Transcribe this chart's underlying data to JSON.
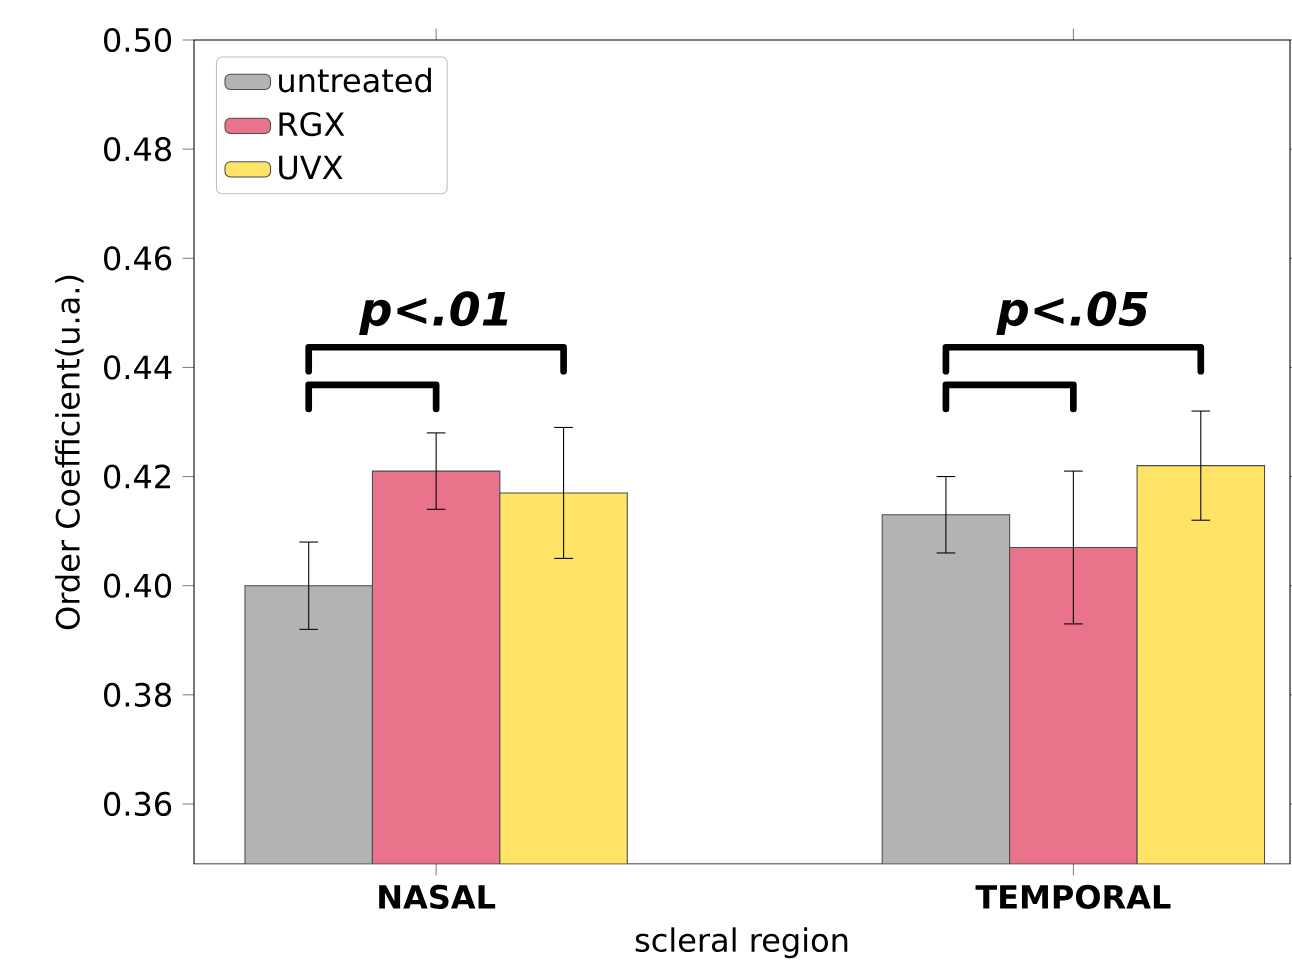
{
  "chart_data": {
    "type": "bar",
    "xlabel": "scleral region",
    "ylabel": "Order Coefficient(u.a.)",
    "categories": [
      "NASAL",
      "TEMPORAL"
    ],
    "series": [
      {
        "name": "untreated",
        "color": "#b3b3b3",
        "values": [
          0.4,
          0.413
        ],
        "errors": [
          0.008,
          0.007
        ]
      },
      {
        "name": "RGX",
        "color": "#e8738b",
        "values": [
          0.421,
          0.407
        ],
        "errors": [
          0.007,
          0.014
        ]
      },
      {
        "name": "UVX",
        "color": "#ffe366",
        "values": [
          0.417,
          0.422
        ],
        "errors": [
          0.012,
          0.01
        ]
      }
    ],
    "ylim": [
      0.349,
      0.5
    ],
    "yticks": [
      0.36,
      0.38,
      {
        "value": 0.4,
        "label": "0.40"
      },
      0.42,
      0.44,
      0.46,
      0.48,
      {
        "value": 0.5,
        "label": "0.50"
      }
    ],
    "annotations": [
      "p<.01",
      "p<.05"
    ],
    "legend": "top left",
    "grid": false
  }
}
